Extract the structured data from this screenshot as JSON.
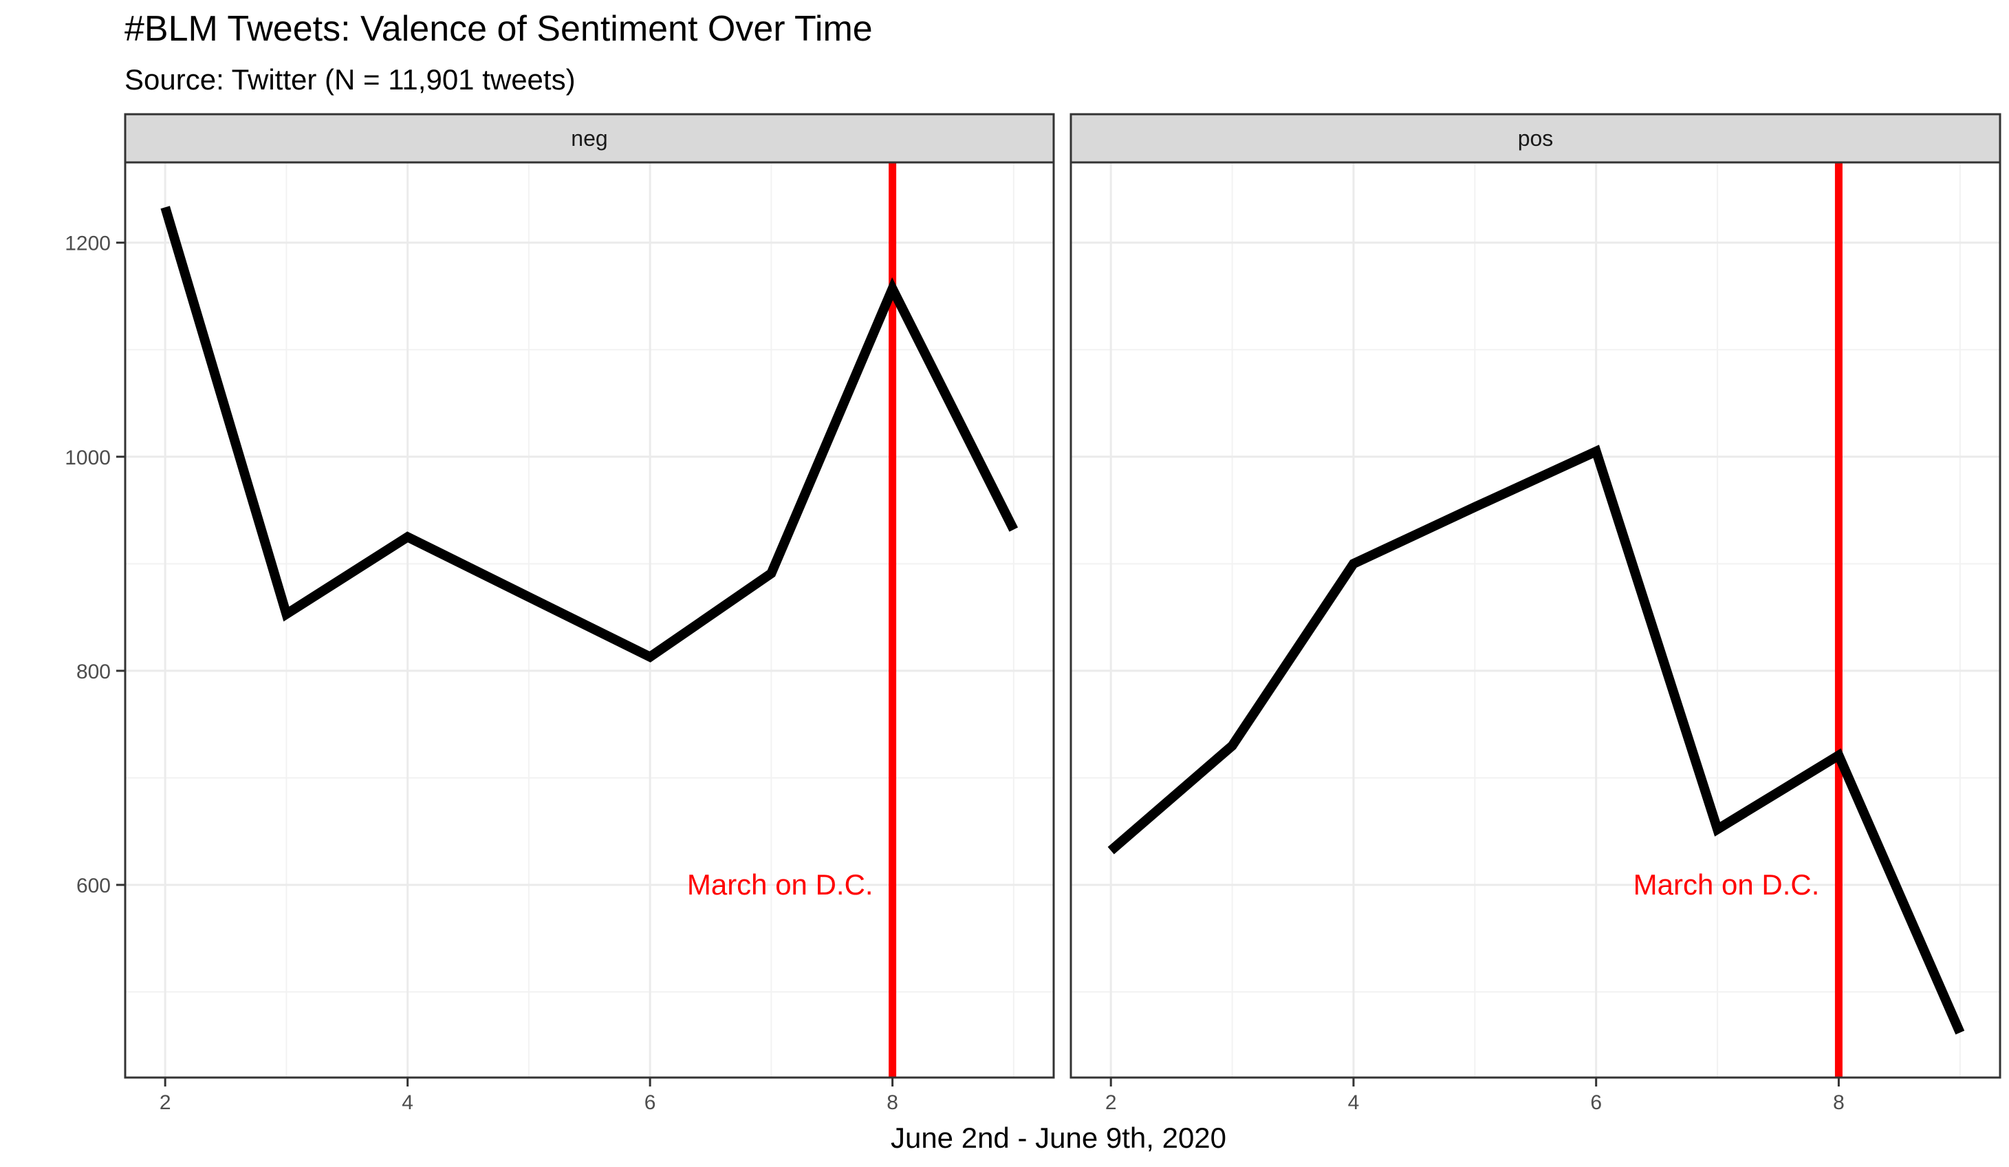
{
  "chart_data": {
    "type": "line",
    "title": "#BLM Tweets: Valence of Sentiment Over Time",
    "subtitle": "Source: Twitter (N = 11,901 tweets)",
    "xlabel": "June 2nd - June 9th, 2020",
    "ylabel": "",
    "xlim": [
      1.67,
      9.33
    ],
    "ylim": [
      420,
      1275
    ],
    "x_ticks": [
      2,
      4,
      6,
      8
    ],
    "y_ticks": [
      600,
      800,
      1000,
      1200
    ],
    "x_minor_ticks": [
      3,
      5,
      7,
      9
    ],
    "y_minor_ticks": [
      500,
      700,
      900,
      1100
    ],
    "grid": true,
    "line_color": "#000000",
    "facets": [
      {
        "name": "neg",
        "x": [
          2,
          3,
          4,
          5,
          6,
          7,
          8,
          9
        ],
        "values": [
          1233,
          853,
          925,
          869,
          813,
          891,
          1157,
          932
        ]
      },
      {
        "name": "pos",
        "x": [
          2,
          3,
          4,
          5,
          6,
          7,
          8,
          9
        ],
        "values": [
          632,
          730,
          900,
          953,
          1005,
          652,
          721,
          462
        ]
      }
    ],
    "annotations": [
      {
        "type": "vline",
        "x": 8,
        "color": "#ff0000",
        "label": "March on D.C.",
        "label_y": 600
      }
    ]
  }
}
